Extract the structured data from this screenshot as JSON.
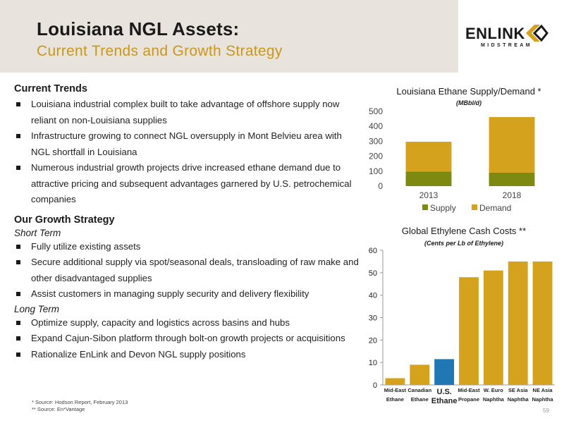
{
  "slide": {
    "title": "Louisiana NGL Assets:",
    "subtitle": "Current Trends and Growth Strategy",
    "logo_text": "ENLINK",
    "logo_sub": "MIDSTREAM",
    "page_number": "59"
  },
  "current_trends": {
    "heading": "Current Trends",
    "bullets": [
      "Louisiana industrial complex built to take advantage of offshore supply now reliant on non-Louisiana supplies",
      "Infrastructure growing to connect NGL oversupply in Mont Belvieu area with NGL shortfall in Louisiana",
      "Numerous industrial growth projects drive increased ethane demand due to attractive pricing and subsequent advantages garnered by U.S. petrochemical companies"
    ]
  },
  "growth_strategy": {
    "heading": "Our Growth Strategy",
    "short_term_label": "Short Term",
    "short_term": [
      "Fully utilize existing assets",
      "Secure additional supply via spot/seasonal deals, transloading of raw make and other disadvantaged supplies",
      "Assist customers in managing supply security and delivery flexibility"
    ],
    "long_term_label": "Long Term",
    "long_term": [
      "Optimize supply, capacity and logistics across basins and hubs",
      "Expand Cajun-Sibon platform through bolt-on growth projects or acquisitions",
      "Rationalize EnLink and Devon NGL supply positions"
    ]
  },
  "footnotes": [
    "*  Source: Hodson Report, February 2013",
    "** Source: En*Vantage"
  ],
  "colors": {
    "banner": "#e8e4dd",
    "gold": "#d4a21d",
    "olive": "#7d8a12",
    "blue": "#1f78b4",
    "accent_text": "#c8971c"
  },
  "chart_data": [
    {
      "type": "bar",
      "stacked": true,
      "title": "Louisiana Ethane Supply/Demand *",
      "subtitle": "(MBbl/d)",
      "categories": [
        "2013",
        "2018"
      ],
      "series": [
        {
          "name": "Supply",
          "values": [
            97,
            90
          ],
          "color": "#7d8a12"
        },
        {
          "name": "Demand",
          "values": [
            200,
            372
          ],
          "color": "#d4a21d"
        }
      ],
      "ylim": [
        0,
        500
      ],
      "yticks": [
        "0",
        "100",
        "200",
        "300",
        "400",
        "500"
      ],
      "legend": "bottom",
      "grid": false
    },
    {
      "type": "bar",
      "title": "Global Ethylene Cash Costs **",
      "subtitle": "(Cents per Lb of Ethylene)",
      "categories": [
        [
          "Mid-East",
          "Ethane"
        ],
        [
          "Canadian",
          "Ethane"
        ],
        [
          "U.S.",
          "Ethane"
        ],
        [
          "Mid-East",
          "Propane"
        ],
        [
          "W. Euro",
          "Naphtha"
        ],
        [
          "SE Asia",
          "Naphtha"
        ],
        [
          "NE Asia",
          "Naphtha"
        ]
      ],
      "values": [
        3,
        9,
        11.5,
        48,
        51,
        55,
        55
      ],
      "highlight_index": 2,
      "ylim": [
        0,
        60
      ],
      "yticks": [
        "0",
        "10",
        "20",
        "30",
        "40",
        "50",
        "60"
      ],
      "grid": false
    }
  ]
}
